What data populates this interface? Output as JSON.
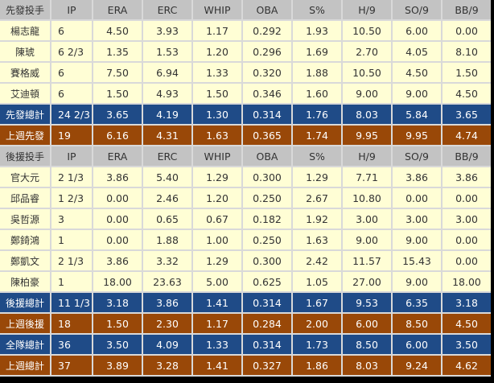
{
  "columns": [
    "IP",
    "ERA",
    "ERC",
    "WHIP",
    "OBA",
    "S%",
    "H/9",
    "SO/9",
    "BB/9"
  ],
  "colors": {
    "header": "#c3c3c3",
    "player": "#fffed5",
    "total": "#1f4b87",
    "last_week": "#994808"
  },
  "rows": [
    {
      "type": "head",
      "name": "先發投手"
    },
    {
      "type": "player",
      "name": "楊志龍",
      "values": [
        "6",
        "4.50",
        "3.93",
        "1.17",
        "0.292",
        "1.93",
        "10.50",
        "6.00",
        "0.00"
      ]
    },
    {
      "type": "player",
      "name": "陳琥",
      "values": [
        "6 2/3",
        "1.35",
        "1.53",
        "1.20",
        "0.296",
        "1.69",
        "2.70",
        "4.05",
        "8.10"
      ]
    },
    {
      "type": "player",
      "name": "賽格威",
      "values": [
        "6",
        "7.50",
        "6.94",
        "1.33",
        "0.320",
        "1.88",
        "10.50",
        "4.50",
        "1.50"
      ]
    },
    {
      "type": "player",
      "name": "艾迪頓",
      "values": [
        "6",
        "1.50",
        "4.93",
        "1.50",
        "0.346",
        "1.60",
        "9.00",
        "9.00",
        "4.50"
      ]
    },
    {
      "type": "blue",
      "name": "先發總計",
      "values": [
        "24 2/3",
        "3.65",
        "4.19",
        "1.30",
        "0.314",
        "1.76",
        "8.03",
        "5.84",
        "3.65"
      ]
    },
    {
      "type": "brown",
      "name": "上週先發",
      "values": [
        "19",
        "6.16",
        "4.31",
        "1.63",
        "0.365",
        "1.74",
        "9.95",
        "9.95",
        "4.74"
      ]
    },
    {
      "type": "head",
      "name": "後援投手"
    },
    {
      "type": "player",
      "name": "官大元",
      "values": [
        "2 1/3",
        "3.86",
        "5.40",
        "1.29",
        "0.300",
        "1.29",
        "7.71",
        "3.86",
        "3.86"
      ]
    },
    {
      "type": "player",
      "name": "邱品睿",
      "values": [
        "1 2/3",
        "0.00",
        "2.46",
        "1.20",
        "0.250",
        "2.67",
        "10.80",
        "0.00",
        "0.00"
      ]
    },
    {
      "type": "player",
      "name": "吳哲源",
      "values": [
        "3",
        "0.00",
        "0.65",
        "0.67",
        "0.182",
        "1.92",
        "3.00",
        "3.00",
        "3.00"
      ]
    },
    {
      "type": "player",
      "name": "鄭錡鴻",
      "values": [
        "1",
        "0.00",
        "1.88",
        "1.00",
        "0.250",
        "1.63",
        "9.00",
        "9.00",
        "0.00"
      ]
    },
    {
      "type": "player",
      "name": "鄭凱文",
      "values": [
        "2 1/3",
        "3.86",
        "3.32",
        "1.29",
        "0.300",
        "2.42",
        "11.57",
        "15.43",
        "0.00"
      ]
    },
    {
      "type": "player",
      "name": "陳柏豪",
      "values": [
        "1",
        "18.00",
        "23.63",
        "5.00",
        "0.625",
        "1.05",
        "27.00",
        "9.00",
        "18.00"
      ]
    },
    {
      "type": "blue",
      "name": "後援總計",
      "values": [
        "11 1/3",
        "3.18",
        "3.86",
        "1.41",
        "0.314",
        "1.67",
        "9.53",
        "6.35",
        "3.18"
      ]
    },
    {
      "type": "brown",
      "name": "上週後援",
      "values": [
        "18",
        "1.50",
        "2.30",
        "1.17",
        "0.284",
        "2.00",
        "6.00",
        "8.50",
        "4.50"
      ]
    },
    {
      "type": "blue",
      "name": "全隊總計",
      "values": [
        "36",
        "3.50",
        "4.09",
        "1.33",
        "0.314",
        "1.73",
        "8.50",
        "6.00",
        "3.50"
      ]
    },
    {
      "type": "brown",
      "name": "上週總計",
      "values": [
        "37",
        "3.89",
        "3.28",
        "1.41",
        "0.327",
        "1.86",
        "8.03",
        "9.24",
        "4.62"
      ]
    }
  ]
}
